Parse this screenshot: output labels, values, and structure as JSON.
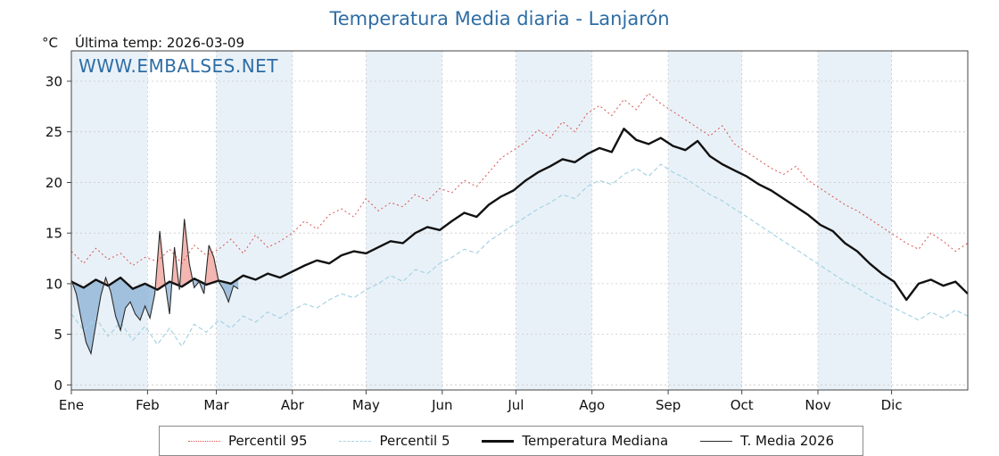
{
  "header": {
    "title": "Temperatura Media diaria - Lanjarón",
    "unit_label": "°C",
    "last_temp_label": "Última temp: 2026-03-09"
  },
  "watermark": {
    "text": "WWW.EMBALSES.NET"
  },
  "legend": [
    {
      "label": "Percentil 95",
      "style": "dotted",
      "color": "#d9534f",
      "width": 1
    },
    {
      "label": "Percentil 5",
      "style": "dashed",
      "color": "#a6d3e3",
      "width": 1
    },
    {
      "label": "Temperatura Mediana",
      "style": "solid",
      "color": "#111111",
      "width": 3
    },
    {
      "label": "T. Media 2026",
      "style": "solid",
      "color": "#2a2a2a",
      "width": 1
    }
  ],
  "chart_data": {
    "type": "line",
    "title": "Temperatura Media diaria - Lanjarón",
    "xlabel": "",
    "ylabel": "°C",
    "x_domain": [
      0,
      365
    ],
    "y_domain": [
      -0.5,
      33
    ],
    "y_ticks": [
      0,
      5,
      10,
      15,
      20,
      25,
      30
    ],
    "months": [
      "Ene",
      "Feb",
      "Mar",
      "Abr",
      "May",
      "Jun",
      "Jul",
      "Ago",
      "Sep",
      "Oct",
      "Nov",
      "Dic"
    ],
    "month_start_days": [
      0,
      31,
      59,
      90,
      120,
      151,
      181,
      212,
      243,
      273,
      304,
      334,
      365
    ],
    "shaded_months": [
      0,
      2,
      4,
      6,
      8,
      10
    ],
    "grid": true,
    "legend_position": "bottom",
    "colors": {
      "p95": "#d9534f",
      "p5": "#a6d3e3",
      "median": "#111111",
      "t2026": "#2a2a2a",
      "fill_above": "#f0a49c",
      "fill_below": "#8fb4d6",
      "band": "#e9f1f8",
      "grid": "#c9c9c9",
      "axis": "#444444",
      "title": "#2e6da4",
      "watermark": "#2e6da4"
    },
    "series": {
      "p95": {
        "name": "Percentil 95",
        "x_start": 0,
        "x_step": 5,
        "values": [
          13.2,
          12.0,
          13.5,
          12.4,
          13.0,
          11.8,
          12.6,
          12.2,
          13.4,
          12.0,
          13.8,
          12.8,
          13.4,
          14.4,
          13.0,
          14.8,
          13.6,
          14.2,
          15.0,
          16.2,
          15.4,
          16.8,
          17.4,
          16.6,
          18.4,
          17.2,
          18.0,
          17.6,
          18.8,
          18.2,
          19.4,
          19.0,
          20.2,
          19.6,
          21.0,
          22.4,
          23.2,
          24.0,
          25.2,
          24.4,
          26.0,
          25.0,
          26.8,
          27.6,
          26.6,
          28.2,
          27.2,
          28.8,
          27.8,
          27.0,
          26.2,
          25.4,
          24.6,
          25.6,
          23.8,
          23.0,
          22.2,
          21.4,
          20.8,
          21.6,
          20.2,
          19.4,
          18.6,
          17.8,
          17.2,
          16.4,
          15.6,
          14.8,
          14.0,
          13.4,
          15.0,
          14.2,
          13.2,
          14.0
        ]
      },
      "p5": {
        "name": "Percentil 5",
        "x_start": 0,
        "x_step": 5,
        "values": [
          7.0,
          5.4,
          6.6,
          4.8,
          6.2,
          4.4,
          5.8,
          4.0,
          5.6,
          3.8,
          6.0,
          5.2,
          6.4,
          5.6,
          6.8,
          6.2,
          7.2,
          6.6,
          7.4,
          8.0,
          7.6,
          8.4,
          9.0,
          8.6,
          9.4,
          10.0,
          10.8,
          10.2,
          11.4,
          11.0,
          12.0,
          12.6,
          13.4,
          13.0,
          14.2,
          15.0,
          15.8,
          16.6,
          17.4,
          18.0,
          18.8,
          18.4,
          19.6,
          20.2,
          19.8,
          20.8,
          21.4,
          20.6,
          21.8,
          21.0,
          20.4,
          19.6,
          18.8,
          18.2,
          17.4,
          16.6,
          15.8,
          15.0,
          14.2,
          13.4,
          12.6,
          11.8,
          11.0,
          10.2,
          9.6,
          8.8,
          8.2,
          7.6,
          7.0,
          6.4,
          7.2,
          6.6,
          7.4,
          6.8
        ]
      },
      "median": {
        "name": "Temperatura Mediana",
        "x_start": 0,
        "x_step": 5,
        "values": [
          10.2,
          9.6,
          10.4,
          9.8,
          10.6,
          9.5,
          10.0,
          9.4,
          10.2,
          9.7,
          10.5,
          9.9,
          10.3,
          10.0,
          10.8,
          10.4,
          11.0,
          10.6,
          11.2,
          11.8,
          12.3,
          12.0,
          12.8,
          13.2,
          13.0,
          13.6,
          14.2,
          14.0,
          15.0,
          15.6,
          15.3,
          16.2,
          17.0,
          16.6,
          17.8,
          18.6,
          19.2,
          20.2,
          21.0,
          21.6,
          22.3,
          22.0,
          22.8,
          23.4,
          23.0,
          25.3,
          24.2,
          23.8,
          24.4,
          23.6,
          23.2,
          24.1,
          22.6,
          21.8,
          21.2,
          20.6,
          19.8,
          19.2,
          18.4,
          17.6,
          16.8,
          15.8,
          15.2,
          14.0,
          13.2,
          12.0,
          11.0,
          10.2,
          8.4,
          10.0,
          10.4,
          9.8,
          10.2,
          9.0
        ]
      },
      "t2026": {
        "name": "T. Media 2026",
        "x": [
          0,
          2,
          4,
          6,
          8,
          10,
          12,
          14,
          16,
          18,
          20,
          22,
          24,
          26,
          28,
          30,
          32,
          34,
          36,
          38,
          40,
          42,
          44,
          46,
          48,
          50,
          52,
          54,
          56,
          58,
          60,
          62,
          64,
          66,
          68
        ],
        "values": [
          10.4,
          9.0,
          6.5,
          4.2,
          3.1,
          6.0,
          8.8,
          10.6,
          9.2,
          6.8,
          5.4,
          7.6,
          8.2,
          7.0,
          6.4,
          7.8,
          6.6,
          9.0,
          15.2,
          10.4,
          7.0,
          13.6,
          9.4,
          16.4,
          12.0,
          9.6,
          10.2,
          9.0,
          13.8,
          12.6,
          10.2,
          9.4,
          8.2,
          9.8,
          9.5
        ]
      }
    }
  }
}
